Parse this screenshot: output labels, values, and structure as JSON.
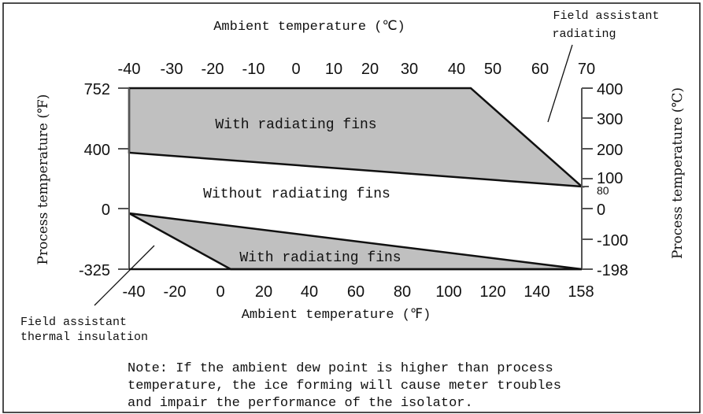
{
  "title_top": "Ambient temperature (℃)",
  "title_bottom": "Ambient temperature (℉)",
  "left_axis_label": "Process temperature (℉)",
  "right_axis_label": "Process temperature (℃)",
  "top_ticks": [
    "-40",
    "-30",
    "-20",
    "-10",
    "0",
    "10",
    "20",
    "30",
    "40",
    "50",
    "60",
    "70"
  ],
  "bottom_ticks": [
    "-40",
    "-20",
    "0",
    "20",
    "40",
    "60",
    "80",
    "100",
    "120",
    "140",
    "158"
  ],
  "left_ticks": [
    "752",
    "400",
    "0",
    "-325"
  ],
  "right_ticks": [
    "400",
    "300",
    "200",
    "100",
    "80",
    "0",
    "-100",
    "-198"
  ],
  "regions": {
    "upper": "With radiating fins",
    "middle": "Without radiating fins",
    "lower": "With radiating fins"
  },
  "callouts": {
    "radiating_line1": "Field assistant",
    "radiating_line2": "radiating",
    "insulation_line1": "Field assistant",
    "insulation_line2": "thermal insulation"
  },
  "note": [
    "Note: If the ambient dew point is higher than process",
    "temperature, the ice forming will cause meter troubles",
    "and impair the performance of the isolator."
  ],
  "colors": {
    "fill": "#c0c0c0",
    "line": "#111111",
    "frame": "#111111",
    "axis": "#555555"
  }
}
